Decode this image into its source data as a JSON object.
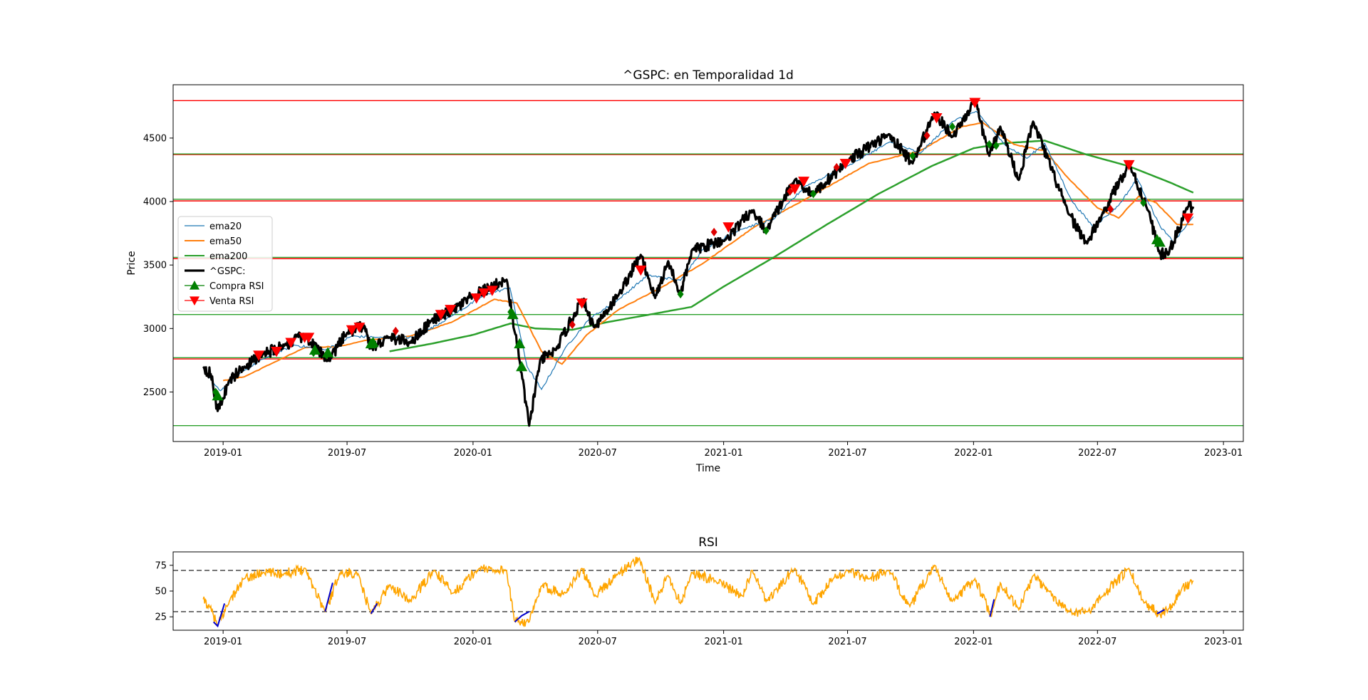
{
  "charts": [
    {
      "id": "price",
      "type": "line",
      "title": "^GSPC: en Temporalidad 1d",
      "xlabel": "Time",
      "ylabel": "Price",
      "xlim": [
        "2018-10-20",
        "2023-01-30"
      ],
      "ylim": [
        2110,
        4920
      ],
      "yticks": [
        2500,
        3000,
        3500,
        4000,
        4500
      ],
      "xticks": [
        "2019-01",
        "2019-07",
        "2020-01",
        "2020-07",
        "2021-01",
        "2021-07",
        "2022-01",
        "2022-07",
        "2023-01"
      ],
      "legend": {
        "placement": "center-left",
        "entries": [
          {
            "label": "ema20",
            "color": "#1f77b4",
            "kind": "line"
          },
          {
            "label": "ema50",
            "color": "#ff7f0e",
            "kind": "line"
          },
          {
            "label": "ema200",
            "color": "#2ca02c",
            "kind": "line"
          },
          {
            "label": "^GSPC:",
            "color": "#000000",
            "kind": "thickline"
          },
          {
            "label": "Compra RSI",
            "color": "#008000",
            "kind": "up-triangle"
          },
          {
            "label": "Venta RSI",
            "color": "#ff0000",
            "kind": "down-triangle"
          }
        ]
      },
      "horizontal_lines": [
        {
          "y": 4795,
          "color": "#ff0000"
        },
        {
          "y": 4370,
          "color": "#ff0000"
        },
        {
          "y": 4375,
          "color": "#2ca02c"
        },
        {
          "y": 4018,
          "color": "#2ca02c"
        },
        {
          "y": 4005,
          "color": "#ff0000"
        },
        {
          "y": 3560,
          "color": "#2ca02c"
        },
        {
          "y": 3550,
          "color": "#ff0000"
        },
        {
          "y": 3110,
          "color": "#2ca02c"
        },
        {
          "y": 2770,
          "color": "#2ca02c"
        },
        {
          "y": 2760,
          "color": "#ff0000"
        },
        {
          "y": 2235,
          "color": "#2ca02c"
        }
      ],
      "price_anchors": [
        [
          "2018-12-03",
          2700
        ],
        [
          "2018-12-14",
          2640
        ],
        [
          "2018-12-24",
          2350
        ],
        [
          "2019-01-10",
          2590
        ],
        [
          "2019-02-01",
          2700
        ],
        [
          "2019-03-01",
          2800
        ],
        [
          "2019-04-01",
          2870
        ],
        [
          "2019-04-30",
          2945
        ],
        [
          "2019-06-03",
          2745
        ],
        [
          "2019-07-01",
          2965
        ],
        [
          "2019-07-26",
          3025
        ],
        [
          "2019-08-05",
          2845
        ],
        [
          "2019-09-01",
          2930
        ],
        [
          "2019-10-02",
          2890
        ],
        [
          "2019-11-01",
          3060
        ],
        [
          "2019-12-02",
          3140
        ],
        [
          "2020-01-02",
          3260
        ],
        [
          "2020-02-19",
          3385
        ],
        [
          "2020-03-09",
          2745
        ],
        [
          "2020-03-23",
          2235
        ],
        [
          "2020-04-08",
          2750
        ],
        [
          "2020-05-01",
          2830
        ],
        [
          "2020-06-08",
          3230
        ],
        [
          "2020-06-26",
          3010
        ],
        [
          "2020-08-01",
          3270
        ],
        [
          "2020-09-02",
          3580
        ],
        [
          "2020-09-23",
          3240
        ],
        [
          "2020-10-12",
          3530
        ],
        [
          "2020-10-30",
          3270
        ],
        [
          "2020-11-16",
          3620
        ],
        [
          "2021-01-04",
          3700
        ],
        [
          "2021-02-12",
          3930
        ],
        [
          "2021-03-04",
          3770
        ],
        [
          "2021-04-15",
          4170
        ],
        [
          "2021-05-12",
          4060
        ],
        [
          "2021-07-01",
          4320
        ],
        [
          "2021-08-30",
          4530
        ],
        [
          "2021-10-04",
          4300
        ],
        [
          "2021-11-05",
          4700
        ],
        [
          "2021-12-01",
          4510
        ],
        [
          "2022-01-03",
          4795
        ],
        [
          "2022-01-24",
          4360
        ],
        [
          "2022-02-09",
          4590
        ],
        [
          "2022-03-08",
          4170
        ],
        [
          "2022-03-29",
          4630
        ],
        [
          "2022-05-20",
          3900
        ],
        [
          "2022-06-16",
          3670
        ],
        [
          "2022-07-08",
          3900
        ],
        [
          "2022-08-16",
          4300
        ],
        [
          "2022-09-13",
          3930
        ],
        [
          "2022-09-30",
          3590
        ],
        [
          "2022-10-12",
          3580
        ],
        [
          "2022-11-10",
          3960
        ],
        [
          "2022-11-18",
          3960
        ]
      ],
      "ema20": [
        [
          "2018-12-10",
          2630
        ],
        [
          "2018-12-28",
          2510
        ],
        [
          "2019-02-01",
          2670
        ],
        [
          "2019-03-01",
          2760
        ],
        [
          "2019-04-15",
          2870
        ],
        [
          "2019-05-30",
          2830
        ],
        [
          "2019-07-08",
          2940
        ],
        [
          "2019-08-15",
          2930
        ],
        [
          "2019-10-10",
          2930
        ],
        [
          "2019-12-01",
          3100
        ],
        [
          "2020-01-20",
          3270
        ],
        [
          "2020-02-24",
          3320
        ],
        [
          "2020-03-20",
          2700
        ],
        [
          "2020-04-10",
          2520
        ],
        [
          "2020-05-15",
          2850
        ],
        [
          "2020-06-20",
          3080
        ],
        [
          "2020-08-01",
          3230
        ],
        [
          "2020-09-12",
          3420
        ],
        [
          "2020-10-30",
          3380
        ],
        [
          "2020-12-01",
          3620
        ],
        [
          "2021-01-25",
          3780
        ],
        [
          "2021-03-15",
          3860
        ],
        [
          "2021-04-30",
          4120
        ],
        [
          "2021-07-01",
          4280
        ],
        [
          "2021-09-01",
          4470
        ],
        [
          "2021-10-15",
          4380
        ],
        [
          "2021-12-01",
          4630
        ],
        [
          "2022-01-05",
          4710
        ],
        [
          "2022-02-15",
          4450
        ],
        [
          "2022-03-20",
          4340
        ],
        [
          "2022-04-15",
          4460
        ],
        [
          "2022-05-25",
          4000
        ],
        [
          "2022-06-25",
          3800
        ],
        [
          "2022-08-01",
          3970
        ],
        [
          "2022-08-28",
          4180
        ],
        [
          "2022-10-01",
          3800
        ],
        [
          "2022-10-20",
          3680
        ],
        [
          "2022-11-18",
          3880
        ]
      ],
      "ema50": [
        [
          "2019-01-01",
          2590
        ],
        [
          "2019-02-01",
          2620
        ],
        [
          "2019-03-15",
          2730
        ],
        [
          "2019-05-01",
          2850
        ],
        [
          "2019-06-20",
          2860
        ],
        [
          "2019-08-01",
          2910
        ],
        [
          "2019-10-01",
          2940
        ],
        [
          "2019-12-01",
          3050
        ],
        [
          "2020-02-01",
          3230
        ],
        [
          "2020-03-05",
          3200
        ],
        [
          "2020-04-10",
          2820
        ],
        [
          "2020-05-10",
          2720
        ],
        [
          "2020-06-15",
          2950
        ],
        [
          "2020-08-01",
          3150
        ],
        [
          "2020-10-01",
          3320
        ],
        [
          "2020-12-01",
          3510
        ],
        [
          "2021-02-15",
          3800
        ],
        [
          "2021-05-01",
          4020
        ],
        [
          "2021-08-01",
          4300
        ],
        [
          "2021-10-15",
          4400
        ],
        [
          "2021-12-15",
          4590
        ],
        [
          "2022-01-15",
          4620
        ],
        [
          "2022-03-01",
          4450
        ],
        [
          "2022-04-15",
          4400
        ],
        [
          "2022-05-20",
          4180
        ],
        [
          "2022-07-01",
          3950
        ],
        [
          "2022-08-01",
          3870
        ],
        [
          "2022-08-30",
          4040
        ],
        [
          "2022-09-25",
          3990
        ],
        [
          "2022-10-25",
          3820
        ],
        [
          "2022-11-18",
          3820
        ]
      ],
      "ema200": [
        [
          "2019-09-01",
          2820
        ],
        [
          "2019-11-01",
          2880
        ],
        [
          "2020-01-01",
          2950
        ],
        [
          "2020-02-25",
          3040
        ],
        [
          "2020-04-01",
          3000
        ],
        [
          "2020-05-25",
          2990
        ],
        [
          "2020-07-15",
          3050
        ],
        [
          "2020-09-15",
          3110
        ],
        [
          "2020-11-15",
          3170
        ],
        [
          "2021-01-01",
          3330
        ],
        [
          "2021-03-15",
          3560
        ],
        [
          "2021-06-01",
          3820
        ],
        [
          "2021-08-15",
          4060
        ],
        [
          "2021-11-01",
          4280
        ],
        [
          "2022-01-01",
          4420
        ],
        [
          "2022-02-15",
          4460
        ],
        [
          "2022-04-15",
          4480
        ],
        [
          "2022-06-15",
          4370
        ],
        [
          "2022-08-15",
          4280
        ],
        [
          "2022-10-15",
          4150
        ],
        [
          "2022-11-18",
          4070
        ]
      ],
      "buy_signals": [
        [
          "2018-12-24",
          2470
        ],
        [
          "2019-05-15",
          2830
        ],
        [
          "2019-06-03",
          2810
        ],
        [
          "2019-08-05",
          2880
        ],
        [
          "2019-08-08",
          2890
        ],
        [
          "2020-02-28",
          3110
        ],
        [
          "2020-03-09",
          2880
        ],
        [
          "2020-03-12",
          2700
        ],
        [
          "2022-09-26",
          3700
        ],
        [
          "2022-09-30",
          3680
        ]
      ],
      "buy_diamonds": [
        [
          "2018-12-21",
          2500
        ],
        [
          "2019-05-13",
          2810
        ],
        [
          "2019-06-01",
          2790
        ],
        [
          "2020-02-25",
          3130
        ],
        [
          "2020-10-30",
          3270
        ],
        [
          "2021-03-04",
          3770
        ],
        [
          "2021-05-12",
          4060
        ],
        [
          "2021-10-04",
          4360
        ],
        [
          "2021-12-01",
          4590
        ],
        [
          "2022-01-24",
          4450
        ],
        [
          "2022-02-03",
          4440
        ],
        [
          "2022-09-06",
          3990
        ]
      ],
      "sell_signals": [
        [
          "2019-02-22",
          2790
        ],
        [
          "2019-03-20",
          2820
        ],
        [
          "2019-04-10",
          2890
        ],
        [
          "2019-04-30",
          2930
        ],
        [
          "2019-05-06",
          2930
        ],
        [
          "2019-07-08",
          2990
        ],
        [
          "2019-07-19",
          3010
        ],
        [
          "2019-11-15",
          3110
        ],
        [
          "2019-11-29",
          3150
        ],
        [
          "2020-01-06",
          3240
        ],
        [
          "2020-01-17",
          3280
        ],
        [
          "2020-01-29",
          3300
        ],
        [
          "2020-06-08",
          3200
        ],
        [
          "2020-09-02",
          3460
        ],
        [
          "2021-01-08",
          3800
        ],
        [
          "2021-04-15",
          4100
        ],
        [
          "2021-04-28",
          4160
        ],
        [
          "2021-06-28",
          4300
        ],
        [
          "2021-11-08",
          4660
        ],
        [
          "2022-01-03",
          4780
        ],
        [
          "2022-08-16",
          4290
        ],
        [
          "2022-11-10",
          3870
        ]
      ],
      "sell_diamonds": [
        [
          "2019-09-10",
          2980
        ],
        [
          "2020-05-25",
          3030
        ],
        [
          "2020-12-18",
          3760
        ],
        [
          "2021-04-08",
          4080
        ],
        [
          "2021-06-15",
          4270
        ],
        [
          "2021-10-25",
          4520
        ],
        [
          "2022-07-20",
          3940
        ]
      ]
    },
    {
      "id": "rsi",
      "type": "line",
      "title": "RSI",
      "xlim": [
        "2018-10-20",
        "2023-01-30"
      ],
      "ylim": [
        12,
        88
      ],
      "yticks": [
        25,
        50,
        75
      ],
      "xticks": [
        "2019-01",
        "2019-07",
        "2020-01",
        "2020-07",
        "2021-01",
        "2021-07",
        "2022-01",
        "2022-07",
        "2023-01"
      ],
      "reference_lines": [
        70,
        30
      ],
      "line_color": "#ffa500",
      "oversold_color": "#0000cd",
      "rsi_anchors": [
        [
          "2018-12-03",
          42
        ],
        [
          "2018-12-12",
          35
        ],
        [
          "2018-12-24",
          16
        ],
        [
          "2019-01-10",
          40
        ],
        [
          "2019-02-01",
          62
        ],
        [
          "2019-03-01",
          68
        ],
        [
          "2019-04-01",
          67
        ],
        [
          "2019-05-01",
          72
        ],
        [
          "2019-05-30",
          30
        ],
        [
          "2019-06-20",
          67
        ],
        [
          "2019-07-15",
          68
        ],
        [
          "2019-08-05",
          28
        ],
        [
          "2019-09-01",
          56
        ],
        [
          "2019-10-01",
          40
        ],
        [
          "2019-11-05",
          70
        ],
        [
          "2019-12-03",
          48
        ],
        [
          "2020-01-10",
          72
        ],
        [
          "2020-02-19",
          70
        ],
        [
          "2020-03-01",
          22
        ],
        [
          "2020-03-23",
          20
        ],
        [
          "2020-04-10",
          55
        ],
        [
          "2020-05-15",
          48
        ],
        [
          "2020-06-08",
          72
        ],
        [
          "2020-06-26",
          45
        ],
        [
          "2020-07-30",
          66
        ],
        [
          "2020-08-31",
          82
        ],
        [
          "2020-09-23",
          38
        ],
        [
          "2020-10-12",
          65
        ],
        [
          "2020-10-30",
          38
        ],
        [
          "2020-11-15",
          68
        ],
        [
          "2020-12-20",
          60
        ],
        [
          "2021-01-29",
          45
        ],
        [
          "2021-02-12",
          70
        ],
        [
          "2021-03-04",
          40
        ],
        [
          "2021-04-15",
          72
        ],
        [
          "2021-05-12",
          37
        ],
        [
          "2021-06-10",
          62
        ],
        [
          "2021-07-01",
          70
        ],
        [
          "2021-08-01",
          62
        ],
        [
          "2021-08-30",
          70
        ],
        [
          "2021-09-30",
          35
        ],
        [
          "2021-11-05",
          75
        ],
        [
          "2021-12-01",
          40
        ],
        [
          "2022-01-03",
          62
        ],
        [
          "2022-01-27",
          25
        ],
        [
          "2022-02-09",
          58
        ],
        [
          "2022-03-08",
          32
        ],
        [
          "2022-03-29",
          65
        ],
        [
          "2022-04-20",
          50
        ],
        [
          "2022-05-20",
          30
        ],
        [
          "2022-06-16",
          30
        ],
        [
          "2022-07-08",
          45
        ],
        [
          "2022-08-16",
          72
        ],
        [
          "2022-09-06",
          40
        ],
        [
          "2022-09-30",
          28
        ],
        [
          "2022-10-12",
          32
        ],
        [
          "2022-11-01",
          52
        ],
        [
          "2022-11-18",
          60
        ]
      ],
      "oversold_segments": [
        [
          [
            "2018-12-18",
            20
          ],
          [
            "2018-12-24",
            16
          ],
          [
            "2019-01-03",
            38
          ]
        ],
        [
          [
            "2019-05-30",
            30
          ],
          [
            "2019-06-10",
            58
          ]
        ],
        [
          [
            "2019-08-05",
            28
          ],
          [
            "2019-08-14",
            38
          ]
        ],
        [
          [
            "2020-03-02",
            20
          ],
          [
            "2020-03-12",
            26
          ],
          [
            "2020-03-23",
            30
          ]
        ],
        [
          [
            "2022-01-25",
            25
          ],
          [
            "2022-01-31",
            42
          ]
        ],
        [
          [
            "2022-09-26",
            28
          ],
          [
            "2022-10-07",
            32
          ]
        ]
      ]
    }
  ]
}
